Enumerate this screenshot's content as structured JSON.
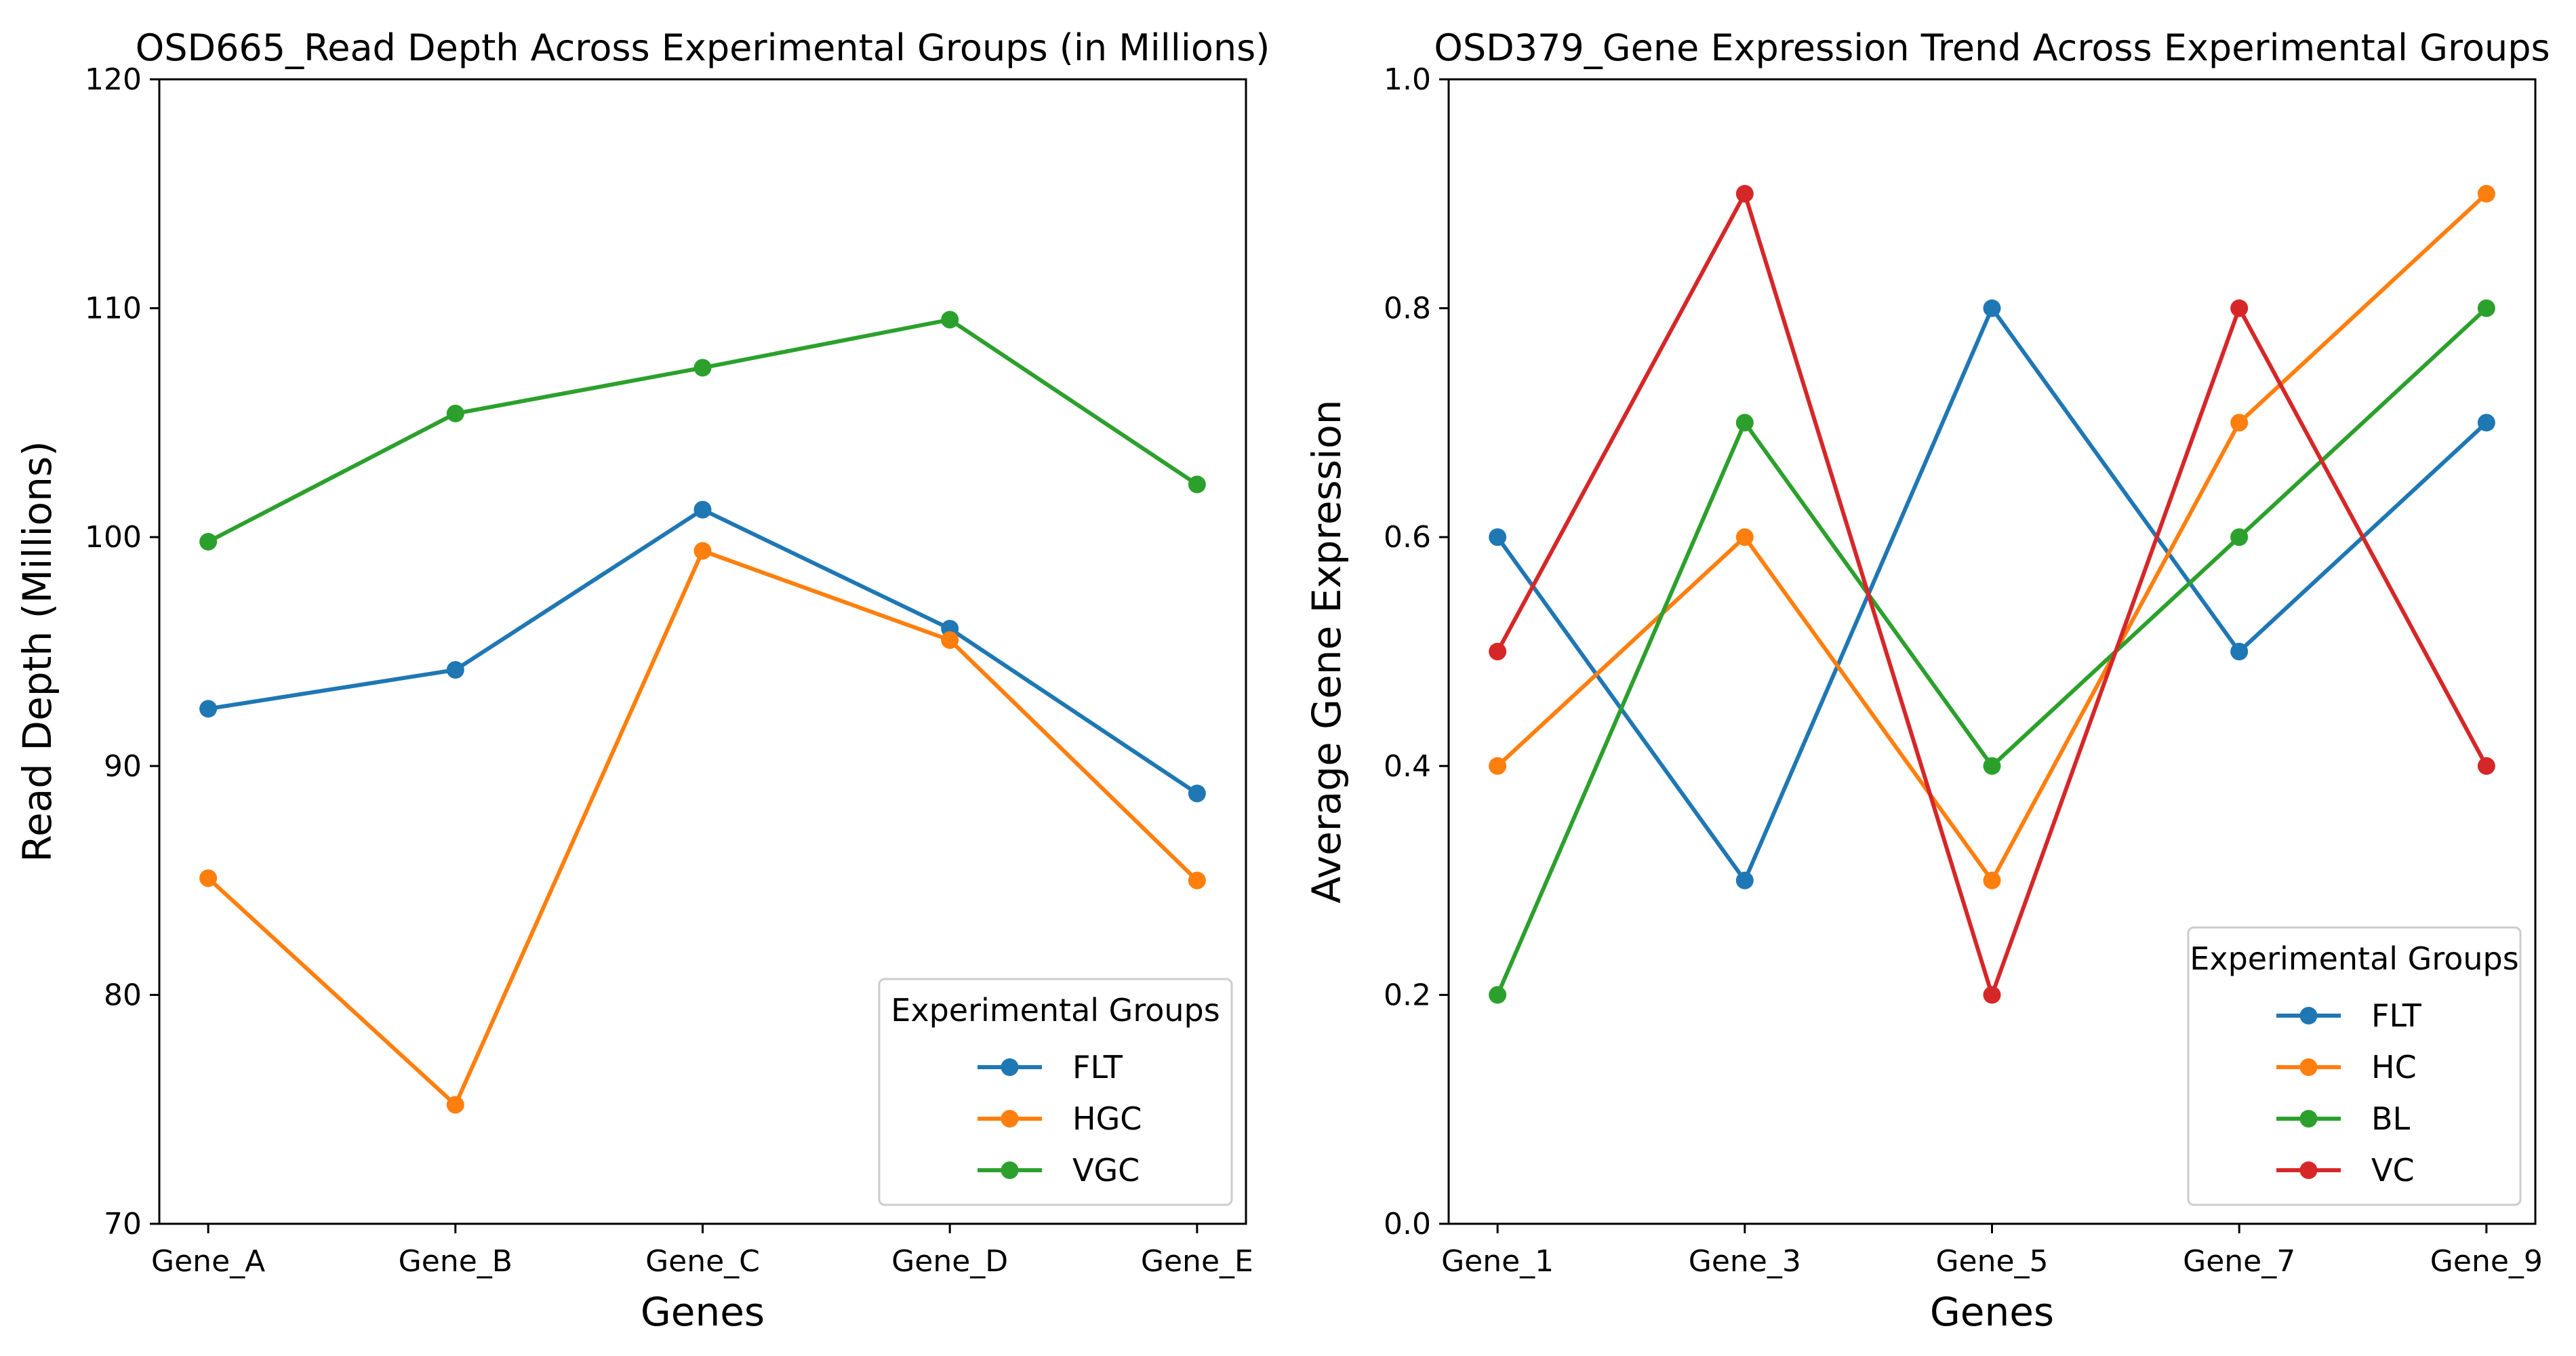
{
  "chart_data": [
    {
      "type": "line",
      "title": "OSD665_Read Depth Across Experimental Groups (in Millions)",
      "xlabel": "Genes",
      "ylabel": "Read Depth (Millions)",
      "categories": [
        "Gene_A",
        "Gene_B",
        "Gene_C",
        "Gene_D",
        "Gene_E"
      ],
      "ylim": [
        70,
        120
      ],
      "yticks": [
        70,
        80,
        90,
        100,
        110,
        120
      ],
      "ytick_labels": [
        "70",
        "80",
        "90",
        "100",
        "110",
        "120"
      ],
      "grid": false,
      "legend": {
        "title": "Experimental Groups",
        "placement": "lower right"
      },
      "series": [
        {
          "name": "FLT",
          "color": "#1f77b4",
          "values": [
            92.5,
            94.2,
            101.2,
            96.0,
            88.8
          ]
        },
        {
          "name": "HGC",
          "color": "#ff7f0e",
          "values": [
            85.1,
            75.2,
            99.4,
            95.5,
            85.0
          ]
        },
        {
          "name": "VGC",
          "color": "#2ca02c",
          "values": [
            99.8,
            105.4,
            107.4,
            109.5,
            102.3
          ]
        }
      ]
    },
    {
      "type": "line",
      "title": "OSD379_Gene Expression Trend Across Experimental Groups",
      "xlabel": "Genes",
      "ylabel": "Average Gene Expression",
      "categories": [
        "Gene_1",
        "Gene_3",
        "Gene_5",
        "Gene_7",
        "Gene_9"
      ],
      "ylim": [
        0.0,
        1.0
      ],
      "yticks": [
        0.0,
        0.2,
        0.4,
        0.6,
        0.8,
        1.0
      ],
      "ytick_labels": [
        "0.0",
        "0.2",
        "0.4",
        "0.6",
        "0.8",
        "1.0"
      ],
      "grid": false,
      "legend": {
        "title": "Experimental Groups",
        "placement": "lower right"
      },
      "series": [
        {
          "name": "FLT",
          "color": "#1f77b4",
          "values": [
            0.6,
            0.3,
            0.8,
            0.5,
            0.7
          ]
        },
        {
          "name": "HC",
          "color": "#ff7f0e",
          "values": [
            0.4,
            0.6,
            0.3,
            0.7,
            0.9
          ]
        },
        {
          "name": "BL",
          "color": "#2ca02c",
          "values": [
            0.2,
            0.7,
            0.4,
            0.6,
            0.8
          ]
        },
        {
          "name": "VC",
          "color": "#d62728",
          "values": [
            0.5,
            0.9,
            0.2,
            0.8,
            0.4
          ]
        }
      ]
    }
  ]
}
